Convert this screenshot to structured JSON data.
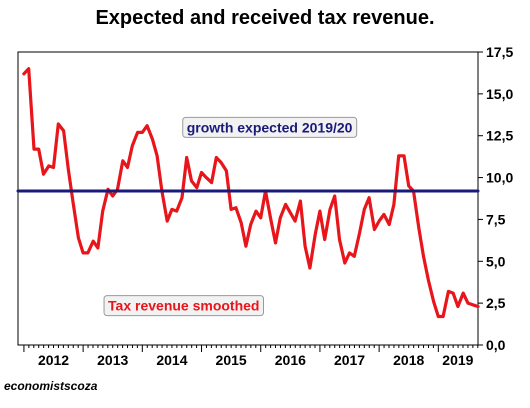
{
  "source": "economistscoza",
  "chart_data": {
    "type": "line",
    "title": "Expected and received tax revenue.",
    "xlabel": "",
    "ylabel": "",
    "xlim": [
      2011.9,
      2019.67
    ],
    "ylim": [
      0,
      17.5
    ],
    "y_ticks": [
      "0,0",
      "2,5",
      "5,0",
      "7,5",
      "10,0",
      "12,5",
      "15,0",
      "17,5"
    ],
    "y_tick_values": [
      0,
      2.5,
      5,
      7.5,
      10,
      12.5,
      15,
      17.5
    ],
    "x_ticks": [
      "2012",
      "2013",
      "2014",
      "2015",
      "2016",
      "2017",
      "2018",
      "2019"
    ],
    "x_tick_values": [
      2012.5,
      2013.5,
      2014.5,
      2015.5,
      2016.5,
      2017.5,
      2018.5,
      2019.33
    ],
    "y_axis_side": "right",
    "grid": false,
    "series": [
      {
        "name": "Tax revenue smoothed",
        "color": "#e8151b",
        "x": [
          2012.0,
          2012.08,
          2012.17,
          2012.25,
          2012.33,
          2012.42,
          2012.5,
          2012.58,
          2012.67,
          2012.75,
          2012.83,
          2012.92,
          2013.0,
          2013.08,
          2013.17,
          2013.25,
          2013.33,
          2013.42,
          2013.5,
          2013.58,
          2013.67,
          2013.75,
          2013.83,
          2013.92,
          2014.0,
          2014.08,
          2014.17,
          2014.25,
          2014.33,
          2014.42,
          2014.5,
          2014.58,
          2014.67,
          2014.75,
          2014.83,
          2014.92,
          2015.0,
          2015.08,
          2015.17,
          2015.25,
          2015.33,
          2015.42,
          2015.5,
          2015.58,
          2015.67,
          2015.75,
          2015.83,
          2015.92,
          2016.0,
          2016.08,
          2016.17,
          2016.25,
          2016.33,
          2016.42,
          2016.5,
          2016.58,
          2016.67,
          2016.75,
          2016.83,
          2016.92,
          2017.0,
          2017.08,
          2017.17,
          2017.25,
          2017.33,
          2017.42,
          2017.5,
          2017.58,
          2017.67,
          2017.75,
          2017.83,
          2017.92,
          2018.0,
          2018.08,
          2018.17,
          2018.25,
          2018.33,
          2018.42,
          2018.5,
          2018.58,
          2018.67,
          2018.75,
          2018.83,
          2018.92,
          2019.0,
          2019.08,
          2019.17,
          2019.25,
          2019.33,
          2019.42,
          2019.5,
          2019.58,
          2019.67
        ],
        "values": [
          16.2,
          16.5,
          11.7,
          11.7,
          10.2,
          10.7,
          10.6,
          13.2,
          12.8,
          10.5,
          8.5,
          6.4,
          5.5,
          5.5,
          6.2,
          5.8,
          8.0,
          9.3,
          8.9,
          9.3,
          11.0,
          10.6,
          11.9,
          12.7,
          12.7,
          13.1,
          12.3,
          11.3,
          9.2,
          7.4,
          8.1,
          8.0,
          8.8,
          11.2,
          9.8,
          9.4,
          10.3,
          10.0,
          9.7,
          11.2,
          10.9,
          10.4,
          8.1,
          8.2,
          7.3,
          5.9,
          7.2,
          8.0,
          7.6,
          9.2,
          7.5,
          6.1,
          7.6,
          8.4,
          7.9,
          7.4,
          8.6,
          5.9,
          4.6,
          6.6,
          8.0,
          6.3,
          8.1,
          8.9,
          6.3,
          4.9,
          5.5,
          5.3,
          6.7,
          8.1,
          8.8,
          6.9,
          7.4,
          7.8,
          7.2,
          8.4,
          11.3,
          11.3,
          9.5,
          9.2,
          7.0,
          5.3,
          3.9,
          2.6,
          1.7,
          1.7,
          3.2,
          3.1,
          2.3,
          3.1,
          2.5,
          2.4,
          2.3
        ]
      },
      {
        "name": "growth expected 2019/20",
        "color": "#1a1a7a",
        "x": [
          2011.9,
          2019.67
        ],
        "values": [
          9.2,
          9.2
        ]
      }
    ],
    "annotations": [
      {
        "text": "growth expected 2019/20",
        "color": "#1a1a7a",
        "x": 2016.15,
        "y": 13.0,
        "boxed": true
      },
      {
        "text": "Tax revenue smoothed",
        "color": "#e8151b",
        "x": 2014.7,
        "y": 2.35,
        "boxed": true
      }
    ]
  }
}
